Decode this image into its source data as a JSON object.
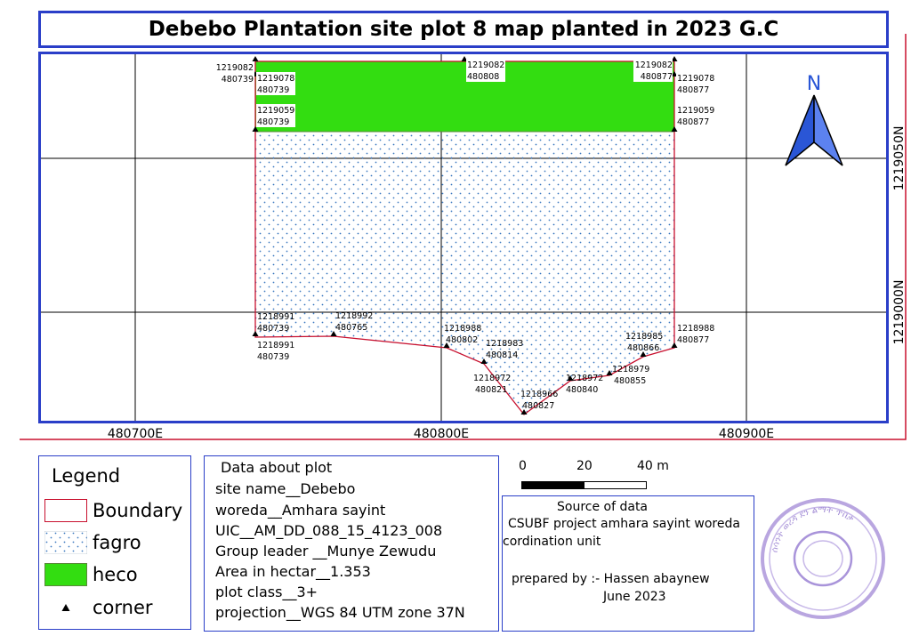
{
  "title": "Debebo Plantation site plot 8 map planted in 2023 G.C",
  "map": {
    "north_label": "N",
    "easting_labels": [
      "480700E",
      "480800E",
      "480900E"
    ],
    "northing_labels": [
      "1219050N",
      "1219000N"
    ],
    "corner_labels": [
      {
        "n": "1219082",
        "e": "480739"
      },
      {
        "n": "1219078",
        "e": "480739"
      },
      {
        "n": "1219059",
        "e": "480739"
      },
      {
        "n": "1219082",
        "e": "480808"
      },
      {
        "n": "1219082",
        "e": "480877"
      },
      {
        "n": "1219078",
        "e": "480877"
      },
      {
        "n": "1219059",
        "e": "480877"
      },
      {
        "n": "1218991",
        "e": "480739"
      },
      {
        "n": "1218991",
        "e": "480739"
      },
      {
        "n": "1218992",
        "e": "480765"
      },
      {
        "n": "1218988",
        "e": "480802"
      },
      {
        "n": "1218983",
        "e": "480814"
      },
      {
        "n": "1218972",
        "e": "480821"
      },
      {
        "n": "1218966",
        "e": "480827"
      },
      {
        "n": "1218972",
        "e": "480840"
      },
      {
        "n": "1218979",
        "e": "480855"
      },
      {
        "n": "1218985",
        "e": "480866"
      },
      {
        "n": "1218988",
        "e": "480877"
      }
    ],
    "colors": {
      "boundary": "#c8102e",
      "heco": "#33dd11",
      "fagro_dots": "#3a78c0",
      "frame": "#2a3ec8",
      "north_arrow": "#2a56d6"
    }
  },
  "legend": {
    "title": "Legend",
    "items": [
      {
        "label": "Boundary",
        "symbol": "boundary"
      },
      {
        "label": "fagro",
        "symbol": "fagro"
      },
      {
        "label": "heco",
        "symbol": "heco"
      },
      {
        "label": "corner",
        "symbol": "corner"
      }
    ]
  },
  "plot_info": {
    "heading": "Data about plot",
    "lines": [
      "site name__Debebo",
      "woreda__Amhara sayint",
      "UIC__AM_DD_088_15_4123_008",
      "Group leader __Munye Zewudu",
      "Area in hectar__1.353",
      "plot class__3+",
      "projection__WGS 84 UTM zone 37N"
    ]
  },
  "scale_bar": {
    "labels": [
      "0",
      "20",
      "40 m"
    ]
  },
  "source": {
    "heading": "Source of data",
    "line1": "CSUBF project amhara sayint woreda",
    "line2": "cordination unit",
    "prepared_by": "prepared by :- Hassen abaynew",
    "date": "June 2023"
  },
  "stamp": {
    "text": "ሰሳንት ወረዳ ደን ልማት ጥበቃ"
  }
}
